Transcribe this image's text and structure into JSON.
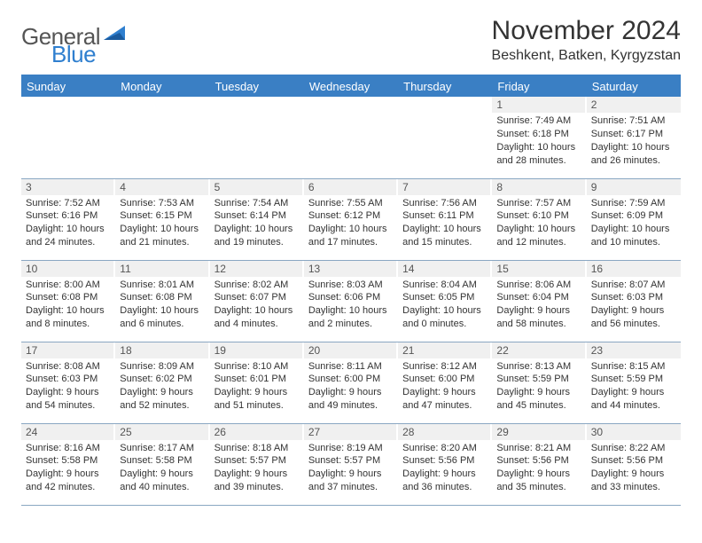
{
  "logo": {
    "text_general": "General",
    "text_blue": "Blue"
  },
  "title": "November 2024",
  "location": "Beshkent, Batken, Kyrgyzstan",
  "colors": {
    "header_bg": "#3a7fc4",
    "header_text": "#ffffff",
    "daynum_bg": "#f0f0f0",
    "daynum_text": "#555555",
    "cell_border": "#8aa7c2",
    "body_text": "#333333",
    "logo_gray": "#555555",
    "logo_blue": "#2f7fcf"
  },
  "day_headers": [
    "Sunday",
    "Monday",
    "Tuesday",
    "Wednesday",
    "Thursday",
    "Friday",
    "Saturday"
  ],
  "weeks": [
    [
      null,
      null,
      null,
      null,
      null,
      {
        "n": "1",
        "sunrise": "7:49 AM",
        "sunset": "6:18 PM",
        "daylight": "10 hours and 28 minutes."
      },
      {
        "n": "2",
        "sunrise": "7:51 AM",
        "sunset": "6:17 PM",
        "daylight": "10 hours and 26 minutes."
      }
    ],
    [
      {
        "n": "3",
        "sunrise": "7:52 AM",
        "sunset": "6:16 PM",
        "daylight": "10 hours and 24 minutes."
      },
      {
        "n": "4",
        "sunrise": "7:53 AM",
        "sunset": "6:15 PM",
        "daylight": "10 hours and 21 minutes."
      },
      {
        "n": "5",
        "sunrise": "7:54 AM",
        "sunset": "6:14 PM",
        "daylight": "10 hours and 19 minutes."
      },
      {
        "n": "6",
        "sunrise": "7:55 AM",
        "sunset": "6:12 PM",
        "daylight": "10 hours and 17 minutes."
      },
      {
        "n": "7",
        "sunrise": "7:56 AM",
        "sunset": "6:11 PM",
        "daylight": "10 hours and 15 minutes."
      },
      {
        "n": "8",
        "sunrise": "7:57 AM",
        "sunset": "6:10 PM",
        "daylight": "10 hours and 12 minutes."
      },
      {
        "n": "9",
        "sunrise": "7:59 AM",
        "sunset": "6:09 PM",
        "daylight": "10 hours and 10 minutes."
      }
    ],
    [
      {
        "n": "10",
        "sunrise": "8:00 AM",
        "sunset": "6:08 PM",
        "daylight": "10 hours and 8 minutes."
      },
      {
        "n": "11",
        "sunrise": "8:01 AM",
        "sunset": "6:08 PM",
        "daylight": "10 hours and 6 minutes."
      },
      {
        "n": "12",
        "sunrise": "8:02 AM",
        "sunset": "6:07 PM",
        "daylight": "10 hours and 4 minutes."
      },
      {
        "n": "13",
        "sunrise": "8:03 AM",
        "sunset": "6:06 PM",
        "daylight": "10 hours and 2 minutes."
      },
      {
        "n": "14",
        "sunrise": "8:04 AM",
        "sunset": "6:05 PM",
        "daylight": "10 hours and 0 minutes."
      },
      {
        "n": "15",
        "sunrise": "8:06 AM",
        "sunset": "6:04 PM",
        "daylight": "9 hours and 58 minutes."
      },
      {
        "n": "16",
        "sunrise": "8:07 AM",
        "sunset": "6:03 PM",
        "daylight": "9 hours and 56 minutes."
      }
    ],
    [
      {
        "n": "17",
        "sunrise": "8:08 AM",
        "sunset": "6:03 PM",
        "daylight": "9 hours and 54 minutes."
      },
      {
        "n": "18",
        "sunrise": "8:09 AM",
        "sunset": "6:02 PM",
        "daylight": "9 hours and 52 minutes."
      },
      {
        "n": "19",
        "sunrise": "8:10 AM",
        "sunset": "6:01 PM",
        "daylight": "9 hours and 51 minutes."
      },
      {
        "n": "20",
        "sunrise": "8:11 AM",
        "sunset": "6:00 PM",
        "daylight": "9 hours and 49 minutes."
      },
      {
        "n": "21",
        "sunrise": "8:12 AM",
        "sunset": "6:00 PM",
        "daylight": "9 hours and 47 minutes."
      },
      {
        "n": "22",
        "sunrise": "8:13 AM",
        "sunset": "5:59 PM",
        "daylight": "9 hours and 45 minutes."
      },
      {
        "n": "23",
        "sunrise": "8:15 AM",
        "sunset": "5:59 PM",
        "daylight": "9 hours and 44 minutes."
      }
    ],
    [
      {
        "n": "24",
        "sunrise": "8:16 AM",
        "sunset": "5:58 PM",
        "daylight": "9 hours and 42 minutes."
      },
      {
        "n": "25",
        "sunrise": "8:17 AM",
        "sunset": "5:58 PM",
        "daylight": "9 hours and 40 minutes."
      },
      {
        "n": "26",
        "sunrise": "8:18 AM",
        "sunset": "5:57 PM",
        "daylight": "9 hours and 39 minutes."
      },
      {
        "n": "27",
        "sunrise": "8:19 AM",
        "sunset": "5:57 PM",
        "daylight": "9 hours and 37 minutes."
      },
      {
        "n": "28",
        "sunrise": "8:20 AM",
        "sunset": "5:56 PM",
        "daylight": "9 hours and 36 minutes."
      },
      {
        "n": "29",
        "sunrise": "8:21 AM",
        "sunset": "5:56 PM",
        "daylight": "9 hours and 35 minutes."
      },
      {
        "n": "30",
        "sunrise": "8:22 AM",
        "sunset": "5:56 PM",
        "daylight": "9 hours and 33 minutes."
      }
    ]
  ],
  "labels": {
    "sunrise": "Sunrise:",
    "sunset": "Sunset:",
    "daylight": "Daylight:"
  }
}
